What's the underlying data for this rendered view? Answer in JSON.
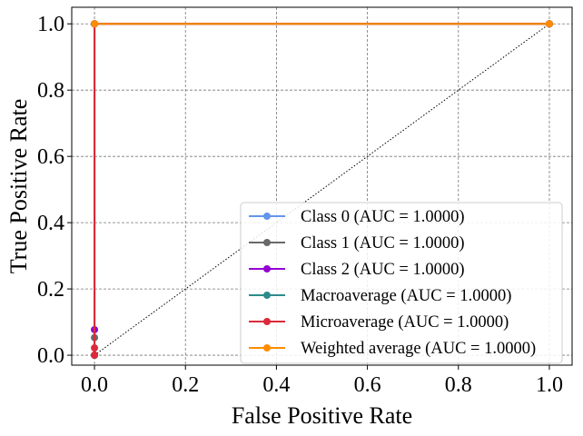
{
  "chart_data": {
    "type": "line",
    "title": "",
    "xlabel": "False Positive Rate",
    "ylabel": "True Positive Rate",
    "xlim": [
      -0.05,
      1.05
    ],
    "ylim": [
      -0.03,
      1.05
    ],
    "xticks": [
      0.0,
      0.2,
      0.4,
      0.6,
      0.8,
      1.0
    ],
    "yticks": [
      0.0,
      0.2,
      0.4,
      0.6,
      0.8,
      1.0
    ],
    "tick_labels_x": [
      "0.0",
      "0.2",
      "0.4",
      "0.6",
      "0.8",
      "1.0"
    ],
    "tick_labels_y": [
      "0.0",
      "0.2",
      "0.4",
      "0.6",
      "0.8",
      "1.0"
    ],
    "grid": true,
    "legend_position": "lower-right",
    "diagonal_reference": {
      "x": [
        0,
        1
      ],
      "y": [
        0,
        1
      ],
      "style": "dotted",
      "color": "#000000"
    },
    "series": [
      {
        "name": "Class 0 (AUC = 1.0000)",
        "color": "#6495ED",
        "x": [
          0.0,
          0.0,
          1.0
        ],
        "y": [
          0.0,
          1.0,
          1.0
        ]
      },
      {
        "name": "Class 1 (AUC = 1.0000)",
        "color": "#696969",
        "x": [
          0.0,
          0.0,
          0.0,
          1.0
        ],
        "y": [
          0.0,
          0.053,
          1.0,
          1.0
        ]
      },
      {
        "name": "Class 2 (AUC = 1.0000)",
        "color": "#9400D3",
        "x": [
          0.0,
          0.0,
          0.0,
          1.0
        ],
        "y": [
          0.0,
          0.077,
          1.0,
          1.0
        ]
      },
      {
        "name": "Macroaverage (AUC = 1.0000)",
        "color": "#2E8B8B",
        "x": [
          0.0,
          0.0,
          1.0
        ],
        "y": [
          0.0,
          1.0,
          1.0
        ]
      },
      {
        "name": "Microaverage (AUC = 1.0000)",
        "color": "#DC2A3A",
        "x": [
          0.0,
          0.0,
          0.0,
          1.0
        ],
        "y": [
          0.0,
          0.022,
          1.0,
          1.0
        ]
      },
      {
        "name": "Weighted average (AUC = 1.0000)",
        "color": "#FF8C00",
        "x": [
          0.0,
          1.0
        ],
        "y": [
          1.0,
          1.0
        ]
      }
    ]
  }
}
